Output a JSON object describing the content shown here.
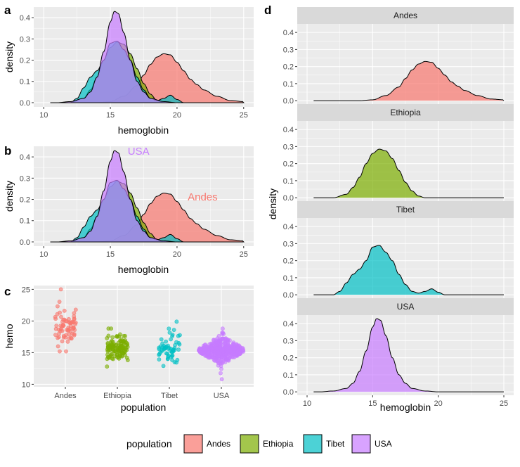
{
  "colors": {
    "Andes": "#F8766D",
    "Ethiopia": "#7CAE00",
    "Tibet": "#00BFC4",
    "USA": "#C77CFF",
    "panel_bg": "#EBEBEB",
    "grid": "#FFFFFF",
    "strip_bg": "#D9D9D9"
  },
  "chart_data": [
    {
      "id": "a",
      "type": "area",
      "title": "a",
      "xlabel": "hemoglobin",
      "ylabel": "density",
      "xlim": [
        10,
        25
      ],
      "ylim": [
        0,
        0.45
      ],
      "xticks": [
        "10",
        "15",
        "20",
        "25"
      ],
      "yticks": [
        "0.0",
        "0.1",
        "0.2",
        "0.3",
        "0.4"
      ],
      "series": [
        {
          "name": "Andes",
          "x": [
            14,
            15,
            16,
            17,
            17.5,
            18,
            18.5,
            19,
            19.5,
            20,
            20.5,
            21,
            21.5,
            22,
            23,
            24,
            25
          ],
          "values": [
            0,
            0.005,
            0.03,
            0.08,
            0.13,
            0.18,
            0.215,
            0.23,
            0.225,
            0.19,
            0.15,
            0.11,
            0.085,
            0.06,
            0.03,
            0.01,
            0.005
          ]
        },
        {
          "name": "Ethiopia",
          "x": [
            12,
            13,
            13.5,
            14,
            14.5,
            15,
            15.5,
            16,
            16.5,
            17,
            17.5,
            18,
            18.5,
            19
          ],
          "values": [
            0,
            0.02,
            0.06,
            0.12,
            0.2,
            0.26,
            0.285,
            0.275,
            0.23,
            0.16,
            0.09,
            0.04,
            0.01,
            0
          ]
        },
        {
          "name": "Tibet",
          "x": [
            12,
            12.5,
            13,
            13.5,
            14,
            14.5,
            15,
            15.5,
            16,
            16.5,
            17,
            17.5,
            18,
            18.5,
            19,
            19.5,
            20,
            20.5
          ],
          "values": [
            0,
            0.02,
            0.07,
            0.12,
            0.15,
            0.2,
            0.28,
            0.29,
            0.25,
            0.2,
            0.12,
            0.06,
            0.02,
            0.01,
            0.02,
            0.035,
            0.015,
            0
          ]
        },
        {
          "name": "USA",
          "x": [
            11,
            12,
            13,
            13.5,
            14,
            14.5,
            15,
            15.3,
            15.6,
            16,
            16.5,
            17,
            17.5,
            18,
            19,
            20
          ],
          "values": [
            0,
            0.005,
            0.02,
            0.05,
            0.12,
            0.24,
            0.38,
            0.43,
            0.42,
            0.33,
            0.2,
            0.1,
            0.05,
            0.02,
            0.005,
            0
          ]
        }
      ]
    },
    {
      "id": "b",
      "type": "area",
      "title": "b",
      "xlabel": "hemoglobin",
      "ylabel": "density",
      "xlim": [
        10,
        25
      ],
      "ylim": [
        0,
        0.45
      ],
      "xticks": [
        "10",
        "15",
        "20",
        "25"
      ],
      "yticks": [
        "0.0",
        "0.1",
        "0.2",
        "0.3",
        "0.4"
      ],
      "annotations": [
        {
          "text": "USA",
          "x": 16.3,
          "y": 0.41,
          "series": "USA"
        },
        {
          "text": "Andes",
          "x": 20.8,
          "y": 0.195,
          "series": "Andes"
        }
      ],
      "series_ref": "a"
    },
    {
      "id": "c",
      "type": "scatter",
      "title": "c",
      "xlabel": "population",
      "ylabel": "hemo",
      "categories": [
        "Andes",
        "Ethiopia",
        "Tibet",
        "USA"
      ],
      "ylim": [
        10,
        25
      ],
      "yticks": [
        "10",
        "15",
        "20",
        "25"
      ],
      "distributions": [
        {
          "name": "Andes",
          "center": 19.2,
          "spread": 1.7,
          "count": 70,
          "min": 15.2,
          "max": 25.0
        },
        {
          "name": "Ethiopia",
          "center": 15.6,
          "spread": 1.1,
          "count": 120,
          "min": 12.8,
          "max": 18.8
        },
        {
          "name": "Tibet",
          "center": 15.5,
          "spread": 1.3,
          "count": 60,
          "min": 12.9,
          "max": 19.9
        },
        {
          "name": "USA",
          "center": 15.4,
          "spread": 0.9,
          "count": 400,
          "min": 10.8,
          "max": 18.8
        }
      ]
    },
    {
      "id": "d",
      "type": "area",
      "title": "d",
      "xlabel": "hemoglobin",
      "ylabel": "density",
      "xlim": [
        10,
        25
      ],
      "ylim": [
        0,
        0.45
      ],
      "xticks": [
        "10",
        "15",
        "20",
        "25"
      ],
      "yticks": [
        "0.0",
        "0.1",
        "0.2",
        "0.3",
        "0.4"
      ],
      "facets": [
        "Andes",
        "Ethiopia",
        "Tibet",
        "USA"
      ],
      "series_ref": "a"
    }
  ],
  "legend": {
    "title": "population",
    "items": [
      "Andes",
      "Ethiopia",
      "Tibet",
      "USA"
    ]
  }
}
